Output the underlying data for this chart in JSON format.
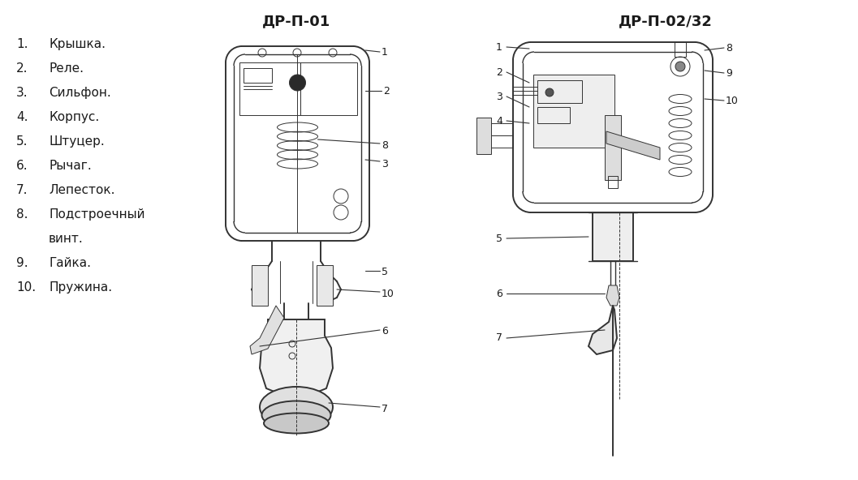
{
  "title_left": "ДР-П-01",
  "title_right": "ДР-П-02/32",
  "legend_items": [
    "Крышка.",
    "Реле.",
    "Сильфон.",
    "Корпус.",
    "Штуцер.",
    "Рычаг.",
    "Лепесток.",
    "Подстроечный",
    "винт.",
    "Гайка.",
    "Пружина."
  ],
  "bg_color": "#ffffff",
  "text_color": "#1a1a1a",
  "line_color": "#333333",
  "font_size_title": 13,
  "font_size_legend": 11,
  "font_size_label": 9
}
